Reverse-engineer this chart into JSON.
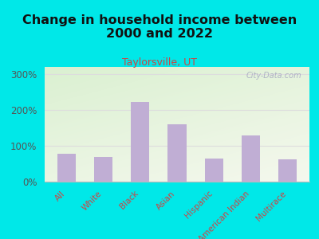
{
  "title": "Change in household income between\n2000 and 2022",
  "subtitle": "Taylorsville, UT",
  "categories": [
    "All",
    "White",
    "Black",
    "Asian",
    "Hispanic",
    "American Indian",
    "Multirace"
  ],
  "values": [
    78,
    70,
    222,
    160,
    65,
    128,
    62
  ],
  "bar_color": "#c0aed4",
  "title_fontsize": 11.5,
  "subtitle_fontsize": 9,
  "subtitle_color": "#cc4444",
  "tick_label_color": "#cc4444",
  "ytick_color": "#555555",
  "background_outer": "#00e8e8",
  "ylim": [
    0,
    320
  ],
  "yticks": [
    0,
    100,
    200,
    300
  ],
  "ytick_labels": [
    "0%",
    "100%",
    "200%",
    "300%"
  ],
  "watermark": "City-Data.com"
}
